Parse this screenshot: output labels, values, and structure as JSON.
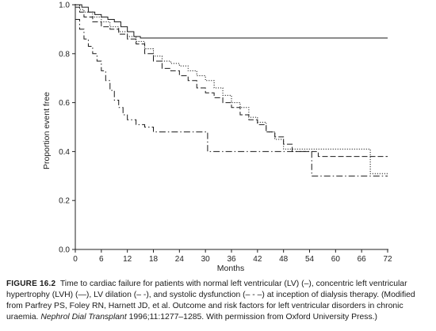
{
  "chart_data": {
    "type": "line",
    "step": true,
    "xlabel": "Months",
    "ylabel": "Proportion event free",
    "xlim": [
      0,
      72
    ],
    "ylim": [
      0,
      1.0
    ],
    "x_ticks": [
      0,
      6,
      12,
      18,
      24,
      30,
      36,
      42,
      48,
      54,
      60,
      66,
      72
    ],
    "y_ticks": [
      0.0,
      0.2,
      0.4,
      0.6,
      0.8,
      1.0
    ],
    "grid": false,
    "legend": "none",
    "series": [
      {
        "style": "solid",
        "points": [
          [
            0,
            1.0
          ],
          [
            1.5,
            0.99
          ],
          [
            3,
            0.97
          ],
          [
            4.5,
            0.96
          ],
          [
            6,
            0.95
          ],
          [
            7.5,
            0.94
          ],
          [
            9,
            0.93
          ],
          [
            10.5,
            0.91
          ],
          [
            12,
            0.89
          ],
          [
            13.5,
            0.87
          ],
          [
            15,
            0.864
          ],
          [
            72,
            0.864
          ]
        ]
      },
      {
        "style": "dashed",
        "points": [
          [
            0,
            0.99
          ],
          [
            1,
            0.97
          ],
          [
            2,
            0.95
          ],
          [
            4,
            0.93
          ],
          [
            6,
            0.91
          ],
          [
            8,
            0.9
          ],
          [
            10,
            0.88
          ],
          [
            12,
            0.86
          ],
          [
            14,
            0.84
          ],
          [
            16,
            0.8
          ],
          [
            18,
            0.77
          ],
          [
            20,
            0.74
          ],
          [
            22,
            0.73
          ],
          [
            24,
            0.71
          ],
          [
            26,
            0.69
          ],
          [
            28,
            0.66
          ],
          [
            30,
            0.64
          ],
          [
            32,
            0.62
          ],
          [
            34,
            0.6
          ],
          [
            36,
            0.58
          ],
          [
            38,
            0.55
          ],
          [
            40,
            0.53
          ],
          [
            42,
            0.51
          ],
          [
            44,
            0.48
          ],
          [
            46,
            0.46
          ],
          [
            48,
            0.43
          ],
          [
            50,
            0.4
          ],
          [
            54,
            0.4
          ],
          [
            56,
            0.38
          ],
          [
            72,
            0.38
          ]
        ]
      },
      {
        "style": "dotted",
        "points": [
          [
            0,
            1.0
          ],
          [
            1,
            0.98
          ],
          [
            2,
            0.97
          ],
          [
            4,
            0.95
          ],
          [
            6,
            0.93
          ],
          [
            8,
            0.91
          ],
          [
            10,
            0.89
          ],
          [
            12,
            0.87
          ],
          [
            14,
            0.85
          ],
          [
            16,
            0.82
          ],
          [
            18,
            0.79
          ],
          [
            20,
            0.77
          ],
          [
            22,
            0.76
          ],
          [
            24,
            0.75
          ],
          [
            26,
            0.73
          ],
          [
            28,
            0.71
          ],
          [
            30,
            0.69
          ],
          [
            32,
            0.66
          ],
          [
            34,
            0.63
          ],
          [
            36,
            0.6
          ],
          [
            38,
            0.58
          ],
          [
            40,
            0.54
          ],
          [
            42,
            0.52
          ],
          [
            44,
            0.48
          ],
          [
            46,
            0.45
          ],
          [
            48,
            0.41
          ],
          [
            66,
            0.41
          ],
          [
            68,
            0.31
          ],
          [
            72,
            0.31
          ]
        ]
      },
      {
        "style": "dash-dot",
        "points": [
          [
            0,
            0.94
          ],
          [
            1,
            0.9
          ],
          [
            2,
            0.86
          ],
          [
            3,
            0.83
          ],
          [
            4,
            0.8
          ],
          [
            5,
            0.77
          ],
          [
            6,
            0.73
          ],
          [
            7,
            0.69
          ],
          [
            8,
            0.65
          ],
          [
            9,
            0.61
          ],
          [
            10,
            0.58
          ],
          [
            11,
            0.55
          ],
          [
            12,
            0.53
          ],
          [
            14,
            0.51
          ],
          [
            16,
            0.5
          ],
          [
            18,
            0.48
          ],
          [
            24,
            0.48
          ],
          [
            30,
            0.48
          ],
          [
            30.5,
            0.4
          ],
          [
            54,
            0.4
          ],
          [
            54.5,
            0.3
          ],
          [
            72,
            0.3
          ]
        ]
      }
    ]
  },
  "caption": {
    "label": "FIGURE 16.2",
    "text_before": "Time to cardiac failure for patients with normal left ventricular (LV) (–), concentric left ventricular hypertrophy (LVH) (—), LV dilation (– -), and systolic dysfunction (– - –) at inception of dialysis therapy. (Modified from Parfrey PS, Foley RN, Harnett JD, et al. Outcome and risk factors for left ventricular disorders in chronic uraemia. ",
    "journal": "Nephrol Dial Transplant",
    "text_after": " 1996;11:1277–1285. With permission from Oxford University Press.)"
  }
}
